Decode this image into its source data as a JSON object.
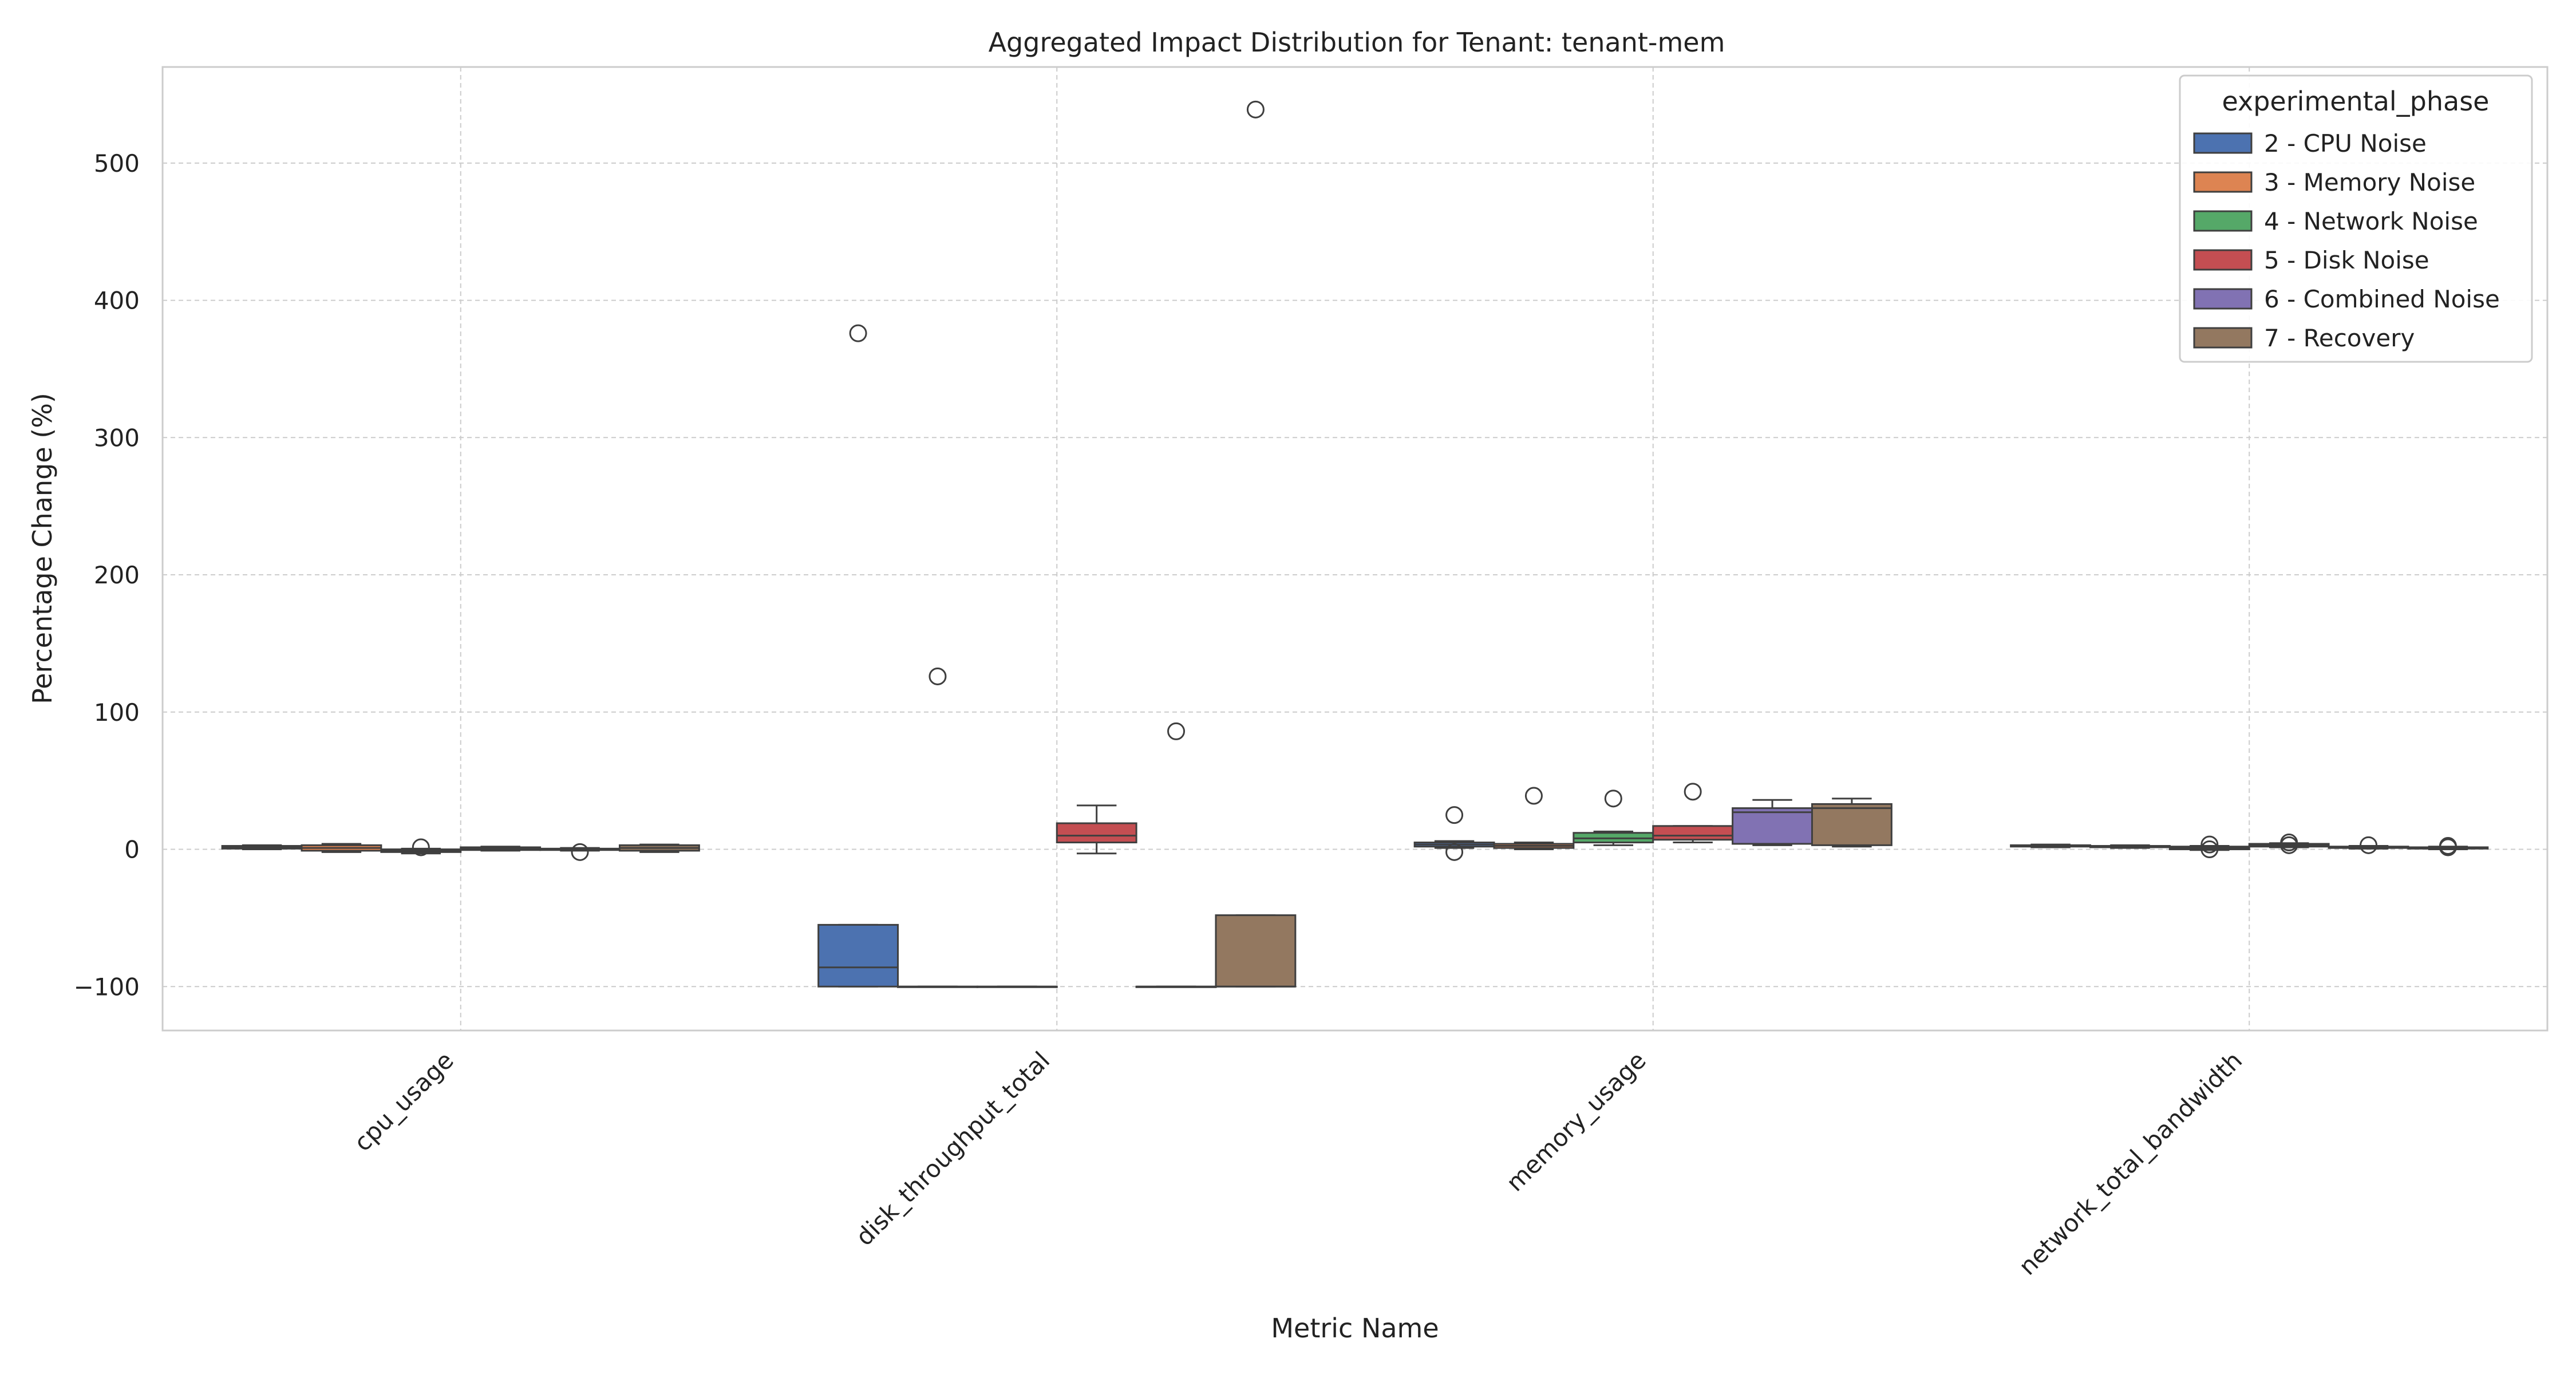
{
  "chart_data": {
    "type": "box",
    "title": "Aggregated Impact Distribution for Tenant: tenant-mem",
    "xlabel": "Metric Name",
    "ylabel": "Percentage Change (%)",
    "ylim": [
      -132,
      570
    ],
    "yticks": [
      -100,
      0,
      100,
      200,
      300,
      400,
      500
    ],
    "categories": [
      "cpu_usage",
      "disk_throughput_total",
      "memory_usage",
      "network_total_bandwidth"
    ],
    "grid": true,
    "legend": {
      "title": "experimental_phase",
      "position": "top-right"
    },
    "series": [
      {
        "name": "2 - CPU Noise",
        "color": "#4c72b0",
        "boxes": [
          {
            "q1": 0.5,
            "median": 1.5,
            "q3": 2.5,
            "whisker_low": 0,
            "whisker_high": 3,
            "outliers": []
          },
          {
            "q1": -100,
            "median": -86,
            "q3": -55,
            "whisker_low": -100,
            "whisker_high": -55,
            "outliers": [
              376
            ]
          },
          {
            "q1": 2,
            "median": 3.5,
            "q3": 5,
            "whisker_low": 1,
            "whisker_high": 6,
            "outliers": [
              25,
              -2
            ]
          },
          {
            "q1": 2,
            "median": 2.5,
            "q3": 3,
            "whisker_low": 1.5,
            "whisker_high": 3.5,
            "outliers": []
          }
        ]
      },
      {
        "name": "3 - Memory Noise",
        "color": "#dd8452",
        "boxes": [
          {
            "q1": -1,
            "median": 1,
            "q3": 3,
            "whisker_low": -2,
            "whisker_high": 4,
            "outliers": []
          },
          {
            "q1": -100,
            "median": -100,
            "q3": -100,
            "whisker_low": -100,
            "whisker_high": -100,
            "outliers": [
              126
            ]
          },
          {
            "q1": 1,
            "median": 2.5,
            "q3": 4,
            "whisker_low": 0,
            "whisker_high": 5,
            "outliers": [
              39
            ]
          },
          {
            "q1": 1.5,
            "median": 2,
            "q3": 2.5,
            "whisker_low": 1,
            "whisker_high": 3,
            "outliers": []
          }
        ]
      },
      {
        "name": "4 - Network Noise",
        "color": "#55a868",
        "boxes": [
          {
            "q1": -2,
            "median": -1,
            "q3": 0,
            "whisker_low": -3,
            "whisker_high": 0.5,
            "outliers": [
              1.5
            ]
          },
          {
            "q1": -100,
            "median": -100,
            "q3": -100,
            "whisker_low": -100,
            "whisker_high": -100,
            "outliers": []
          },
          {
            "q1": 5,
            "median": 8,
            "q3": 12,
            "whisker_low": 3,
            "whisker_high": 13,
            "outliers": [
              37
            ]
          },
          {
            "q1": 0,
            "median": 1,
            "q3": 2,
            "whisker_low": -0.5,
            "whisker_high": 2.5,
            "outliers": [
              0,
              3.5
            ]
          }
        ]
      },
      {
        "name": "5 - Disk Noise",
        "color": "#c44e52",
        "boxes": [
          {
            "q1": -0.5,
            "median": 0.5,
            "q3": 1.5,
            "whisker_low": -1,
            "whisker_high": 2,
            "outliers": []
          },
          {
            "q1": 5,
            "median": 10,
            "q3": 19,
            "whisker_low": -3,
            "whisker_high": 32,
            "outliers": []
          },
          {
            "q1": 7,
            "median": 10,
            "q3": 17,
            "whisker_low": 5,
            "whisker_high": 17,
            "outliers": [
              42
            ]
          },
          {
            "q1": 2,
            "median": 3,
            "q3": 4,
            "whisker_low": 1.5,
            "whisker_high": 4.5,
            "outliers": [
              3,
              5
            ]
          }
        ]
      },
      {
        "name": "6 - Combined Noise",
        "color": "#8172b3",
        "boxes": [
          {
            "q1": -0.5,
            "median": 0,
            "q3": 0.5,
            "whisker_low": -1,
            "whisker_high": 1,
            "outliers": [
              -2
            ]
          },
          {
            "q1": -100,
            "median": -100,
            "q3": -100,
            "whisker_low": -100,
            "whisker_high": -100,
            "outliers": [
              86
            ]
          },
          {
            "q1": 4,
            "median": 27,
            "q3": 30,
            "whisker_low": 3,
            "whisker_high": 36,
            "outliers": []
          },
          {
            "q1": 1,
            "median": 1.5,
            "q3": 2,
            "whisker_low": 0.5,
            "whisker_high": 2.5,
            "outliers": [
              3
            ]
          }
        ]
      },
      {
        "name": "7 - Recovery",
        "color": "#937860",
        "boxes": [
          {
            "q1": -1,
            "median": 1,
            "q3": 3,
            "whisker_low": -2,
            "whisker_high": 3.5,
            "outliers": []
          },
          {
            "q1": -100,
            "median": -100,
            "q3": -48,
            "whisker_low": -100,
            "whisker_high": -48,
            "outliers": [
              539
            ]
          },
          {
            "q1": 3,
            "median": 30,
            "q3": 33,
            "whisker_low": 2,
            "whisker_high": 37,
            "outliers": []
          },
          {
            "q1": 0.5,
            "median": 1,
            "q3": 1.5,
            "whisker_low": 0,
            "whisker_high": 2,
            "outliers": [
              1.5,
              2.5
            ]
          }
        ]
      }
    ]
  }
}
